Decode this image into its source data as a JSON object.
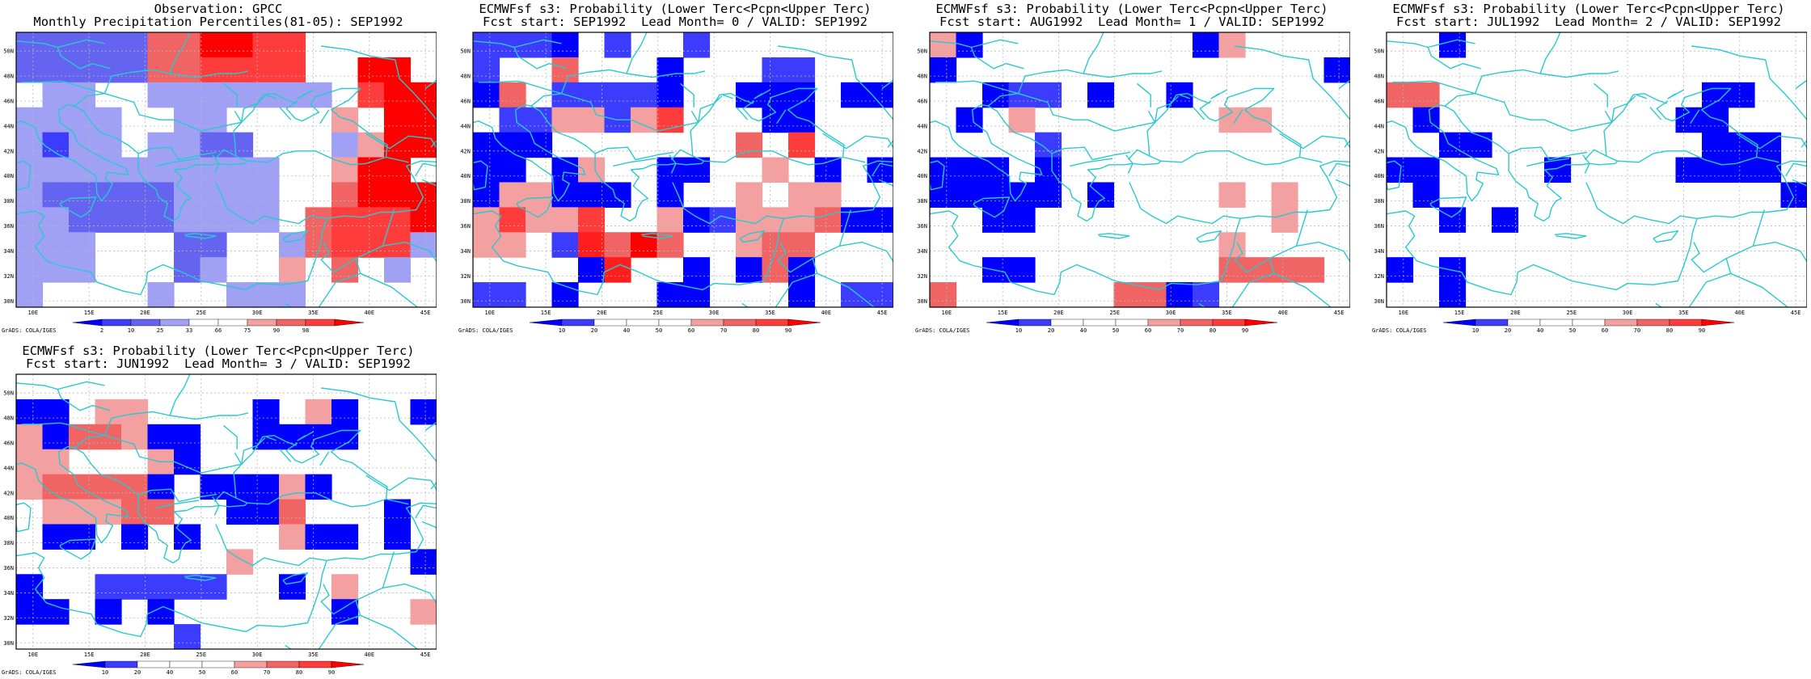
{
  "lon_labels": [
    "10E",
    "15E",
    "20E",
    "25E",
    "30E",
    "35E",
    "40E",
    "45E"
  ],
  "lat_labels": [
    "30N",
    "32N",
    "34N",
    "36N",
    "38N",
    "40N",
    "42N",
    "44N",
    "46N",
    "48N",
    "50N"
  ],
  "credit": "GrADS: COLA/IGES",
  "colors": {
    "coast": "#29c9cf",
    "grid": "#b8b8b8",
    "obs_scale": [
      "#0000ff",
      "#3c3cff",
      "#6464f0",
      "#a0a0f5",
      "#ffffff",
      "#ffffff",
      "#f5a0a0",
      "#f06464",
      "#ff3c3c",
      "#ff0000"
    ],
    "prob_scale": [
      "#0000ff",
      "#3c3cff",
      "#ffffff",
      "#ffffff",
      "#ffffff",
      "#f5a0a0",
      "#f06464",
      "#ff3c3c",
      "#ff0000"
    ]
  },
  "panels": [
    {
      "title1": "Observation: GPCC",
      "title2": "Monthly Precipitation Percentiles(81-05): SEP1992",
      "legend_labels": [
        "2",
        "10",
        "25",
        "33",
        "66",
        "75",
        "90",
        "98"
      ],
      "legend_type": "obs",
      "grid": [
        "2222277998800000",
        "2222277888800990",
        "0110011111110899",
        "1111001100006099",
        "1311011220001699",
        "1111111111006990",
        "1222221111007999",
        "1122221111078889",
        "1110002200178881",
        "1110002100607010",
        "1000010011100000"
      ]
    },
    {
      "title1": "ECMWFsf s3: Probability (Lower Terc<Pcpn<Upper Terc)",
      "title2": "Fcst start: SEP1992  Lead Month= 0 / VALID: SEP1992",
      "legend_labels": [
        "10",
        "20",
        "40",
        "50",
        "60",
        "70",
        "80",
        "90"
      ],
      "legend_type": "prob",
      "grid": [
        "2221020020000000",
        "2006000100022000",
        "1602222100111011",
        "0225525700011000",
        "1110000000607000",
        "1101500110050101",
        "1551110100505500",
        "5755700512555611",
        "5502869600566000",
        "0000180010161000",
        "2201000110001022"
      ]
    },
    {
      "title1": "ECMWFsf s3: Probability (Lower Terc<Pcpn<Upper Terc)",
      "title2": "Fcst start: AUG1992  Lead Month= 1 / VALID: SEP1992",
      "legend_labels": [
        "10",
        "20",
        "40",
        "50",
        "60",
        "70",
        "80",
        "90"
      ],
      "legend_type": "prob",
      "grid": [
        "5100000000150000",
        "1000000000000001",
        "0012201001000000",
        "0105000000055000",
        "0000200000000000",
        "1110100000000000",
        "1111101000050500",
        "0011000000000500",
        "0000000000050000",
        "0011000000066660",
        "6000000661200000"
      ]
    },
    {
      "title1": "ECMWFsf s3: Probability (Lower Terc<Pcpn<Upper Terc)",
      "title2": "Fcst start: JUL1992  Lead Month= 2 / VALID: SEP1992",
      "legend_labels": [
        "10",
        "20",
        "40",
        "50",
        "60",
        "70",
        "80",
        "90"
      ],
      "legend_type": "prob",
      "grid": [
        "0010000000000000",
        "0000000000000000",
        "6600000000001100",
        "0100000000011000",
        "0011000000001110",
        "1100001000011110",
        "0100000000000001",
        "0010100000000000",
        "0000000000000000",
        "1010000000000000",
        "0010000000000000"
      ]
    },
    {
      "title1": "ECMWFsf s3: Probability (Lower Terc<Pcpn<Upper Terc)",
      "title2": "Fcst start: JUN1992  Lead Month= 3 / VALID: SEP1992",
      "legend_labels": [
        "10",
        "20",
        "40",
        "50",
        "60",
        "70",
        "80",
        "90"
      ],
      "legend_type": "prob",
      "grid": [
        "0000000000000000",
        "1105500001051001",
        "5166511001111000",
        "5500051000000000",
        "5666610111510000",
        "0555660011600010",
        "0110101000511010",
        "0000000050000001",
        "1002222200105000",
        "1101010000001005",
        "0000002000000000"
      ]
    }
  ]
}
